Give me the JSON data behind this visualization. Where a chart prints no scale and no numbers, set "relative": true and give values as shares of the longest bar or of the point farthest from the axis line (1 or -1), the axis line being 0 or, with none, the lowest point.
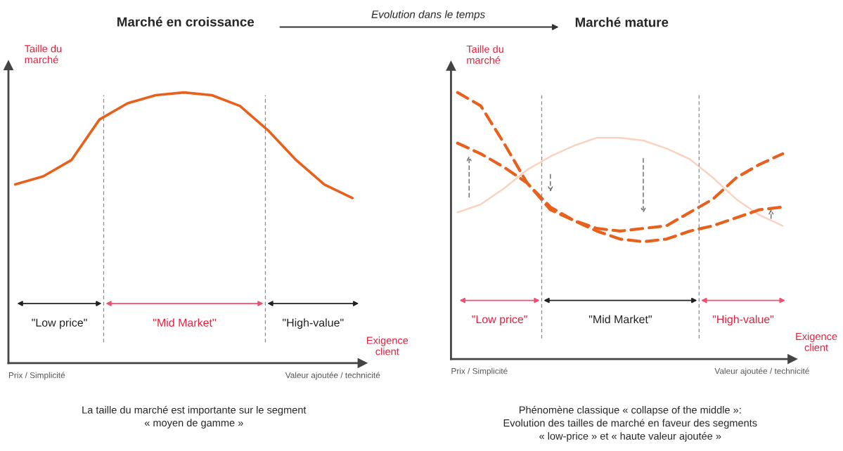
{
  "chart_data": [
    {
      "type": "line",
      "title": "Marché en croissance",
      "ylabel": "Taille du\nmarché",
      "xlabel": "Exigence\nclient",
      "relative": true,
      "legend": false,
      "categories": [
        null,
        null,
        null,
        null,
        null,
        null,
        null,
        null,
        null,
        null,
        null,
        null,
        null
      ],
      "series": [
        {
          "color": "#e8601c",
          "line_style": "solid",
          "values": [
            0.66,
            0.69,
            0.75,
            0.9,
            0.96,
            0.99,
            1.0,
            0.99,
            0.95,
            0.86,
            0.75,
            0.66,
            0.61
          ]
        }
      ],
      "annotations": [
        "\"Low price\"",
        "\"Mid Market\"",
        "\"High-value\"",
        "Prix / Simplicité",
        "Valeur ajoutée / technicité",
        "La taille du marché est importante sur le segment\n« moyen de gamme »",
        "Evolution dans le temps"
      ]
    },
    {
      "type": "line",
      "title": "Marché mature",
      "ylabel": "Taille du\nmarché",
      "xlabel": "Exigence\nclient",
      "relative": true,
      "legend": false,
      "categories": [
        null,
        null,
        null,
        null,
        null,
        null,
        null,
        null,
        null,
        null,
        null,
        null,
        null,
        null,
        null
      ],
      "series": [
        {
          "color": "#f9d3c0",
          "line_style": "solid",
          "values": [
            0.55,
            0.58,
            0.64,
            0.71,
            0.76,
            0.8,
            0.83,
            0.83,
            0.82,
            0.79,
            0.75,
            0.68,
            0.6,
            0.54,
            0.5
          ]
        },
        {
          "color": "#e8601c",
          "line_style": "dashed",
          "values": [
            1.0,
            0.95,
            0.81,
            0.66,
            0.57,
            0.52,
            0.49,
            0.48,
            0.49,
            0.5,
            0.55,
            0.6,
            0.68,
            0.73,
            0.77
          ]
        },
        {
          "color": "#e8601c",
          "line_style": "dashed",
          "values": [
            0.81,
            0.77,
            0.72,
            0.66,
            0.56,
            0.52,
            0.48,
            0.45,
            0.44,
            0.45,
            0.48,
            0.5,
            0.53,
            0.56,
            0.57
          ]
        }
      ],
      "annotations": [
        "\"Low price\"",
        "\"Mid Market\"",
        "\"High-value\"",
        "Prix / Simplicité",
        "Valeur ajoutée / technicité",
        "Phénomène classique « collapse of the middle »:\nEvolution des tailles de marché en faveur des segments\n« low-price » et « haute valeur ajoutée »"
      ]
    }
  ]
}
